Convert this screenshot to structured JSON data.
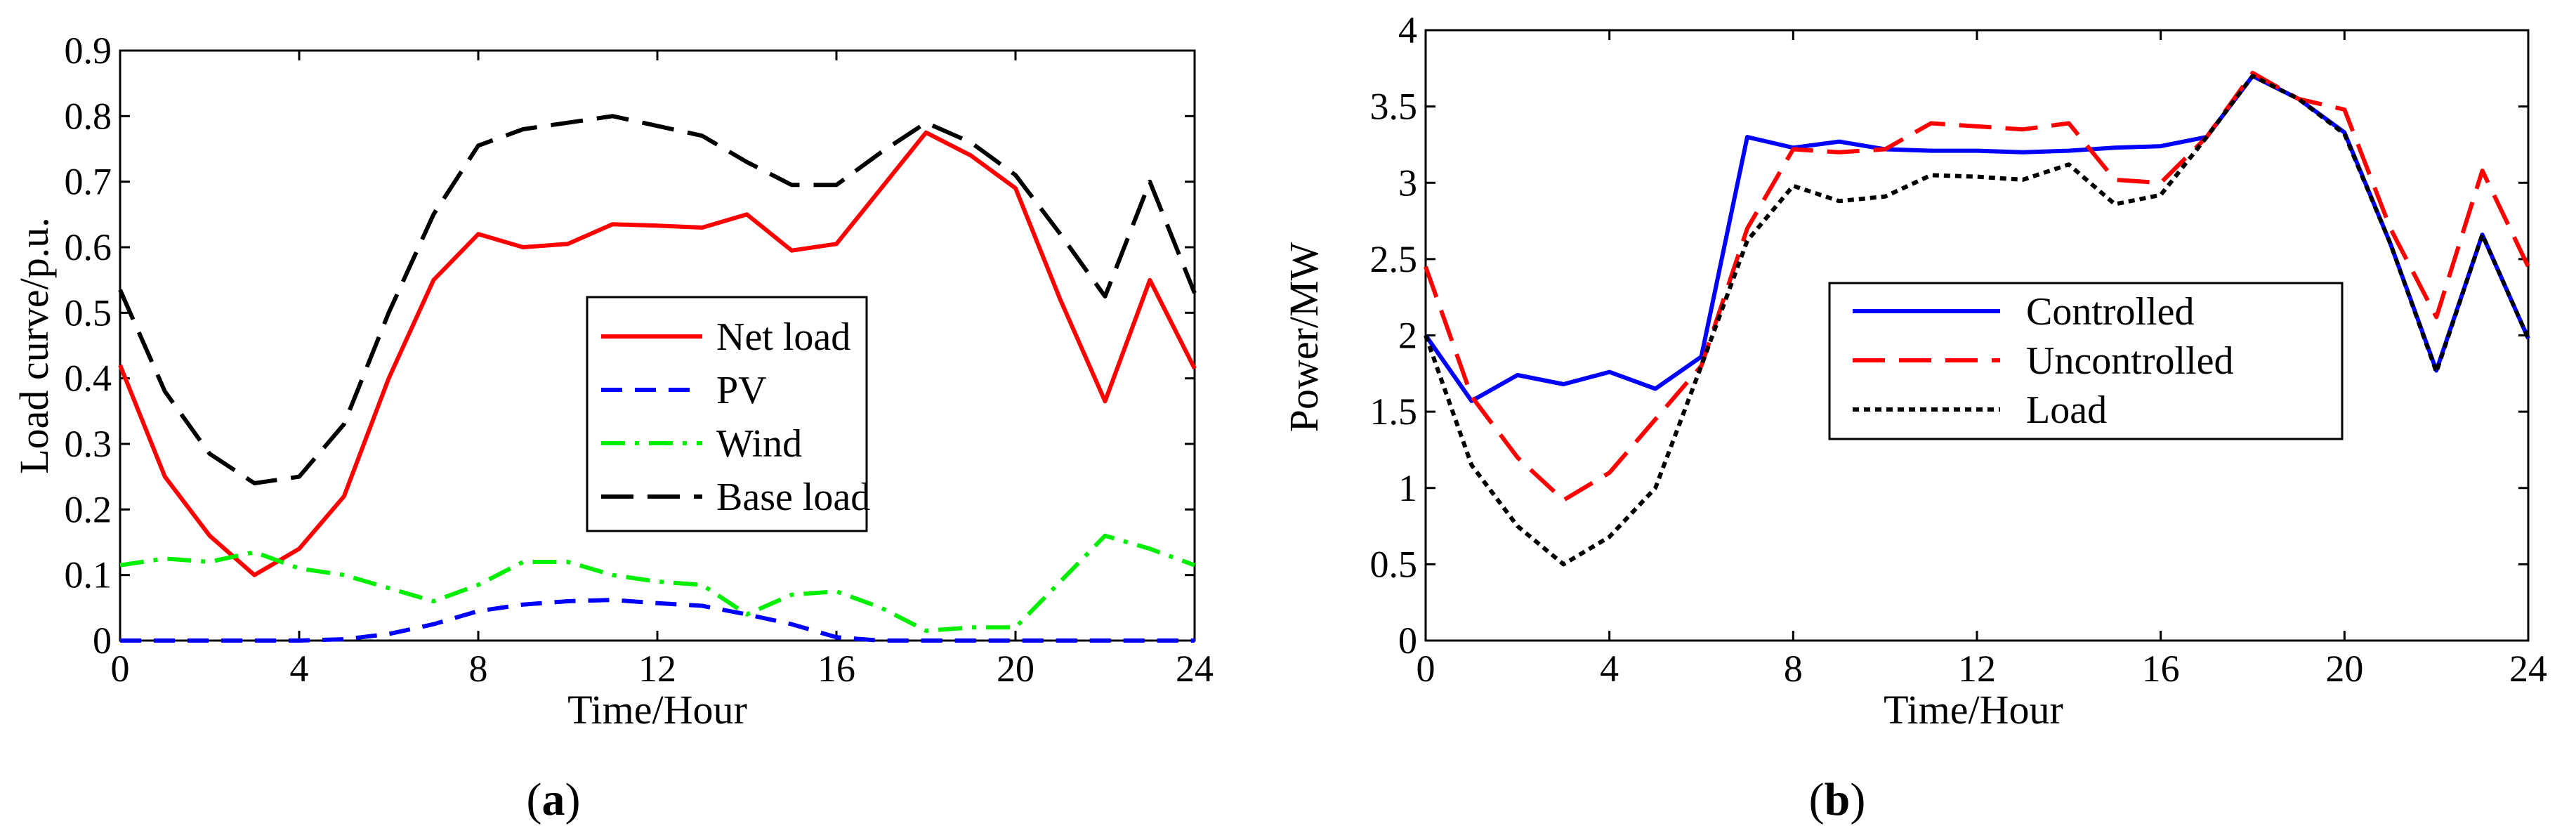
{
  "chart_data": [
    {
      "type": "line",
      "panel_label": "a",
      "xlabel": "Time/Hour",
      "ylabel": "Load curve/p.u.",
      "xlim": [
        0,
        24
      ],
      "ylim": [
        0,
        0.9
      ],
      "xticks": [
        0,
        4,
        8,
        12,
        16,
        20,
        24
      ],
      "yticks": [
        "0",
        "0.1",
        "0.2",
        "0.3",
        "0.4",
        "0.5",
        "0.6",
        "0.7",
        "0.8",
        "0.9"
      ],
      "x": [
        0,
        1,
        2,
        3,
        4,
        5,
        6,
        7,
        8,
        9,
        10,
        11,
        12,
        13,
        14,
        15,
        16,
        17,
        18,
        19,
        20,
        21,
        22,
        23,
        24
      ],
      "series": [
        {
          "name": "Net load",
          "color": "#ff0000",
          "dash": "solid",
          "values": [
            0.42,
            0.25,
            0.16,
            0.1,
            0.14,
            0.22,
            0.4,
            0.55,
            0.62,
            0.6,
            0.605,
            0.635,
            0.633,
            0.63,
            0.65,
            0.595,
            0.605,
            0.69,
            0.775,
            0.74,
            0.69,
            0.52,
            0.365,
            0.55,
            0.415
          ]
        },
        {
          "name": "PV",
          "color": "#0000ff",
          "dash": "dashed",
          "values": [
            0,
            0,
            0,
            0,
            0,
            0.002,
            0.01,
            0.025,
            0.045,
            0.055,
            0.06,
            0.062,
            0.057,
            0.053,
            0.04,
            0.025,
            0.005,
            0,
            0,
            0,
            0,
            0,
            0,
            0,
            0
          ]
        },
        {
          "name": "Wind",
          "color": "#00ee00",
          "dash": "dashdot",
          "values": [
            0.115,
            0.125,
            0.12,
            0.135,
            0.11,
            0.1,
            0.08,
            0.06,
            0.085,
            0.12,
            0.12,
            0.1,
            0.09,
            0.085,
            0.04,
            0.07,
            0.075,
            0.05,
            0.015,
            0.02,
            0.02,
            0.09,
            0.16,
            0.14,
            0.115
          ]
        },
        {
          "name": "Base load",
          "color": "#000000",
          "dash": "longdash",
          "values": [
            0.535,
            0.38,
            0.285,
            0.24,
            0.25,
            0.33,
            0.5,
            0.65,
            0.755,
            0.78,
            0.79,
            0.8,
            0.785,
            0.77,
            0.73,
            0.695,
            0.695,
            0.745,
            0.79,
            0.76,
            0.71,
            0.62,
            0.525,
            0.7,
            0.53
          ]
        }
      ]
    },
    {
      "type": "line",
      "panel_label": "b",
      "xlabel": "Time/Hour",
      "ylabel": "Power/MW",
      "xlim": [
        0,
        24
      ],
      "ylim": [
        0,
        4
      ],
      "xticks": [
        0,
        4,
        8,
        12,
        16,
        20,
        24
      ],
      "yticks": [
        "0",
        "0.5",
        "1",
        "1.5",
        "2",
        "2.5",
        "3",
        "3.5",
        "4"
      ],
      "x": [
        0,
        1,
        2,
        3,
        4,
        5,
        6,
        7,
        8,
        9,
        10,
        11,
        12,
        13,
        14,
        15,
        16,
        17,
        18,
        19,
        20,
        21,
        22,
        23,
        24
      ],
      "series": [
        {
          "name": "Controlled",
          "color": "#0000ff",
          "dash": "solid",
          "values": [
            2.0,
            1.57,
            1.74,
            1.68,
            1.76,
            1.65,
            1.86,
            3.3,
            3.23,
            3.27,
            3.22,
            3.21,
            3.21,
            3.2,
            3.21,
            3.23,
            3.24,
            3.3,
            3.7,
            3.55,
            3.33,
            2.6,
            1.77,
            2.66,
            1.98
          ]
        },
        {
          "name": "Uncontrolled",
          "color": "#ff0000",
          "dash": "longdash",
          "values": [
            2.45,
            1.6,
            1.2,
            0.92,
            1.1,
            1.45,
            1.8,
            2.7,
            3.22,
            3.2,
            3.22,
            3.39,
            3.37,
            3.35,
            3.39,
            3.02,
            3.0,
            3.3,
            3.72,
            3.55,
            3.48,
            2.7,
            2.12,
            3.08,
            2.45
          ]
        },
        {
          "name": "Load",
          "color": "#000000",
          "dash": "dotted",
          "values": [
            2.0,
            1.15,
            0.75,
            0.5,
            0.68,
            1.0,
            1.8,
            2.62,
            2.98,
            2.88,
            2.91,
            3.05,
            3.04,
            3.02,
            3.12,
            2.86,
            2.92,
            3.3,
            3.7,
            3.55,
            3.32,
            2.6,
            1.76,
            2.66,
            1.98
          ]
        }
      ]
    }
  ]
}
